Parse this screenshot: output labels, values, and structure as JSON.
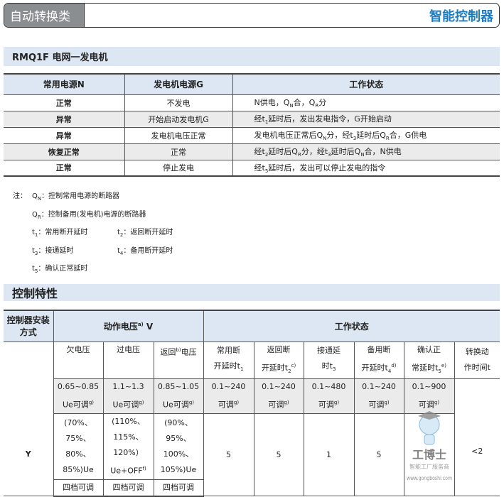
{
  "header": {
    "category": "自动转换类",
    "product": "智能控制器",
    "accent": "#1b7cc1"
  },
  "section1": {
    "title": "RMQ1F 电网一发电机",
    "columns": [
      "常用电源N",
      "发电机电源G",
      "工作状态"
    ],
    "rows": [
      {
        "n": "正常",
        "g": "不发电",
        "s": [
          "N供电，Q",
          "N",
          "合，Q",
          "R",
          "分"
        ]
      },
      {
        "n": "异常",
        "g": "开始启动发电机G",
        "s": [
          "经t",
          "1",
          "延时后，发出发电指令，G开始启动"
        ]
      },
      {
        "n": "异常",
        "g": "发电机电压正常",
        "s": [
          "发电机电压正常后Q",
          "N",
          "分，经t",
          "3",
          "延时后Q",
          "R",
          "合，G供电"
        ]
      },
      {
        "n": "恢复正常",
        "g": "正常",
        "s": [
          "经t",
          "2",
          "延时后Q",
          "R",
          "分，经t",
          "3",
          "延时后Q",
          "N",
          "合，N供电"
        ]
      },
      {
        "n": "正常",
        "g": "停止发电",
        "s": [
          "经t",
          "5",
          "延时后，发出可以停止发电的指令"
        ]
      }
    ]
  },
  "notes": {
    "label": "注：",
    "items": [
      {
        "k": "Q",
        "sub": "N",
        "text": "：控制常用电源的断路器"
      },
      {
        "k": "Q",
        "sub": "R",
        "text": "：控制备用(发电机)电源的断路器"
      },
      {
        "k": "t",
        "sub": "1",
        "text": "：常用断开延时"
      },
      {
        "k": "t",
        "sub": "2",
        "text": "：返回断开延时"
      },
      {
        "k": "t",
        "sub": "3",
        "text": "：接通延时"
      },
      {
        "k": "t",
        "sub": "4",
        "text": "：备用断开延时"
      },
      {
        "k": "t",
        "sub": "5",
        "text": "：确认正常延时"
      }
    ]
  },
  "section2": {
    "title": "控制特性",
    "h_install": "控制器安装方式",
    "h_voltage": "动作电压",
    "h_voltage_sup": "a)",
    "h_voltage_unit": " V",
    "h_status": "工作状态",
    "sub": {
      "uv": "欠电压",
      "ov": "过电压",
      "rv1": "返回",
      "rv_sup": "b)",
      "rv2": "电压",
      "t1a": "常用断",
      "t1b": "开延时t",
      "t1s": "1",
      "t2a": "返回断",
      "t2b": "开延时t",
      "t2s": "2",
      "t2sup": "c)",
      "t3a": "接通延",
      "t3b": "时t",
      "t3s": "3",
      "t4a": "备用断",
      "t4b": "开延时t",
      "t4s": "4",
      "t4sup": "d)",
      "t5a": "确认正",
      "t5b": "常延时t",
      "t5s": "5",
      "t5sup": "e)",
      "ta": "转换动",
      "tb": "作时间t"
    },
    "ranges": {
      "uv": [
        "0.65~0.85",
        "Ue可调"
      ],
      "ov": [
        "1.1~1.3",
        "Ue可调"
      ],
      "rv": [
        "0.85~1.05",
        "Ue可调"
      ],
      "t1": [
        "0.1~240",
        "可调"
      ],
      "t2": [
        "0.1~240",
        "可调"
      ],
      "t3": [
        "0.1~480",
        "可调"
      ],
      "t4": [
        "0.1~240",
        "可调"
      ],
      "t5": [
        "0.1~900",
        "可调"
      ],
      "sup": "g)"
    },
    "row_y": {
      "install": "Y",
      "uv": [
        "(70%、",
        "75%、",
        "80%、",
        "85%)Ue"
      ],
      "ov": [
        "(110%、",
        "115%、",
        "120%）",
        "Ue+OFF"
      ],
      "ov_sup": "f)",
      "rv": [
        "(90%、",
        "95%、",
        "100%、",
        "105%)Ue"
      ],
      "steps": "四档可调",
      "t1": "5",
      "t2": "5",
      "t3": "1",
      "t4": "5",
      "t": "<2"
    }
  },
  "watermark": {
    "name": "工博士",
    "slogan": "智能工厂服务商",
    "url": "www.gongboshi.com"
  }
}
